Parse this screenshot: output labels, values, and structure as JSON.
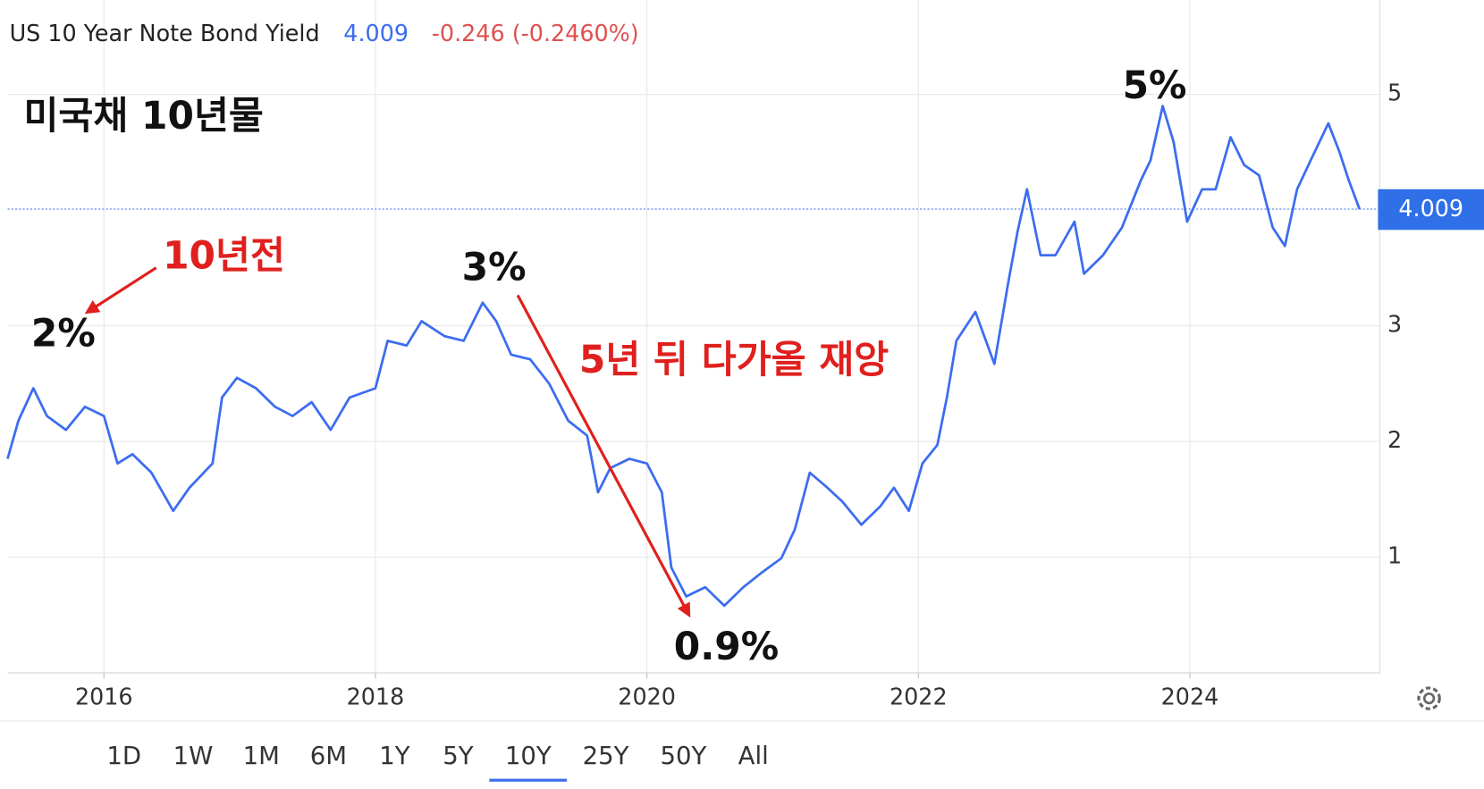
{
  "chart_data": {
    "type": "line",
    "title": "US 10 Year Note Bond Yield",
    "last_value": 4.009,
    "change": "-0.246 (-0.2460%)",
    "x": [
      2015.29,
      2015.37,
      2015.48,
      2015.58,
      2015.72,
      2015.86,
      2016.0,
      2016.1,
      2016.21,
      2016.35,
      2016.51,
      2016.63,
      2016.8,
      2016.87,
      2016.98,
      2017.12,
      2017.26,
      2017.39,
      2017.53,
      2017.67,
      2017.81,
      2018.0,
      2018.09,
      2018.23,
      2018.34,
      2018.51,
      2018.65,
      2018.79,
      2018.89,
      2019.0,
      2019.14,
      2019.28,
      2019.42,
      2019.56,
      2019.64,
      2019.73,
      2019.87,
      2020.0,
      2020.11,
      2020.18,
      2020.29,
      2020.43,
      2020.57,
      2020.71,
      2020.85,
      2020.99,
      2021.09,
      2021.2,
      2021.33,
      2021.44,
      2021.58,
      2021.72,
      2021.82,
      2021.93,
      2022.03,
      2022.14,
      2022.21,
      2022.28,
      2022.42,
      2022.56,
      2022.66,
      2022.73,
      2022.8,
      2022.9,
      2023.01,
      2023.15,
      2023.22,
      2023.36,
      2023.5,
      2023.64,
      2023.71,
      2023.8,
      2023.88,
      2023.98,
      2024.09,
      2024.19,
      2024.3,
      2024.4,
      2024.51,
      2024.61,
      2024.7,
      2024.79,
      2024.89,
      2025.02,
      2025.1,
      2025.17,
      2025.25
    ],
    "series": [
      {
        "name": "US 10 Year Note Bond Yield",
        "color": "#3c6df0",
        "values": [
          1.85,
          2.18,
          2.46,
          2.22,
          2.1,
          2.3,
          2.22,
          1.81,
          1.89,
          1.73,
          1.4,
          1.6,
          1.81,
          2.38,
          2.55,
          2.46,
          2.3,
          2.22,
          2.34,
          2.1,
          2.38,
          2.46,
          2.87,
          2.83,
          3.04,
          2.91,
          2.87,
          3.2,
          3.04,
          2.75,
          2.71,
          2.5,
          2.18,
          2.05,
          1.56,
          1.77,
          1.85,
          1.81,
          1.56,
          0.91,
          0.66,
          0.74,
          0.58,
          0.74,
          0.87,
          0.99,
          1.24,
          1.73,
          1.6,
          1.48,
          1.28,
          1.44,
          1.6,
          1.4,
          1.81,
          1.97,
          2.38,
          2.87,
          3.12,
          2.67,
          3.36,
          3.81,
          4.18,
          3.61,
          3.61,
          3.9,
          3.45,
          3.61,
          3.85,
          4.26,
          4.43,
          4.9,
          4.59,
          3.9,
          4.18,
          4.18,
          4.63,
          4.39,
          4.3,
          3.85,
          3.69,
          4.18,
          4.43,
          4.75,
          4.51,
          4.26,
          4.009
        ]
      }
    ],
    "xlim": [
      2015.29,
      2025.4
    ],
    "xticks": [
      2016,
      2018,
      2020,
      2022,
      2024
    ],
    "ylim": [
      0,
      5.8
    ],
    "yticks": [
      1,
      2,
      3,
      5
    ],
    "grid": true,
    "annotations": [
      "미국채 10년물",
      "10년전",
      "2%",
      "3%",
      "5년 뒤 다가올 재앙",
      "0.9%",
      "5%"
    ],
    "ranges": [
      "1D",
      "1W",
      "1M",
      "6M",
      "1Y",
      "5Y",
      "10Y",
      "25Y",
      "50Y",
      "All"
    ],
    "active_range": 6
  }
}
